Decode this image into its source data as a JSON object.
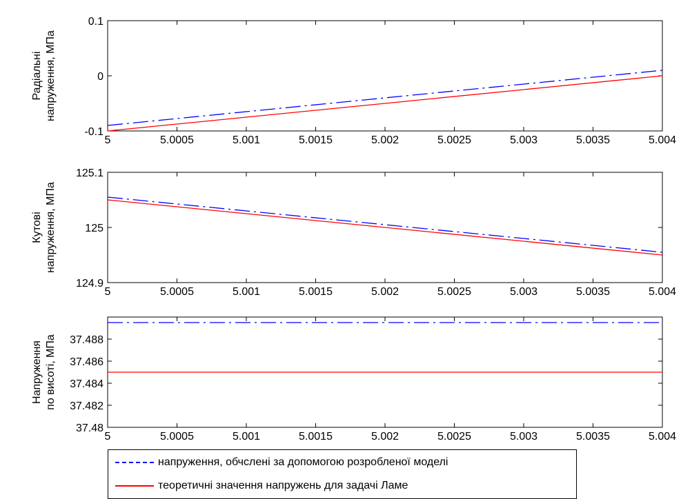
{
  "chart_data": [
    {
      "type": "line",
      "ylabel": [
        "Радіальні",
        "напруження, МПа"
      ],
      "xlim": [
        5,
        5.004
      ],
      "ylim": [
        -0.1,
        0.1
      ],
      "xticks": [
        "5",
        "5.0005",
        "5.001",
        "5.0015",
        "5.002",
        "5.0025",
        "5.003",
        "5.0035",
        "5.004"
      ],
      "yticks": [
        {
          "v": -0.1,
          "label": "-0.1"
        },
        {
          "v": 0,
          "label": "0"
        },
        {
          "v": 0.1,
          "label": "0.1"
        }
      ],
      "series": [
        {
          "style": "dashdot",
          "color": "#0000ff",
          "x": [
            5,
            5.004
          ],
          "y": [
            -0.09,
            0.01
          ]
        },
        {
          "style": "solid",
          "color": "#ff0000",
          "x": [
            5,
            5.004
          ],
          "y": [
            -0.1,
            0.0
          ]
        }
      ]
    },
    {
      "type": "line",
      "ylabel": [
        "Кутові",
        "напруження, МПа"
      ],
      "xlim": [
        5,
        5.004
      ],
      "ylim": [
        124.9,
        125.1
      ],
      "xticks": [
        "5",
        "5.0005",
        "5.001",
        "5.0015",
        "5.002",
        "5.0025",
        "5.003",
        "5.0035",
        "5.004"
      ],
      "yticks": [
        {
          "v": 124.9,
          "label": "124.9"
        },
        {
          "v": 125,
          "label": "125"
        },
        {
          "v": 125.1,
          "label": "125.1"
        }
      ],
      "series": [
        {
          "style": "dashdot",
          "color": "#0000ff",
          "x": [
            5,
            5.004
          ],
          "y": [
            125.055,
            124.955
          ]
        },
        {
          "style": "solid",
          "color": "#ff0000",
          "x": [
            5,
            5.004
          ],
          "y": [
            125.05,
            124.95
          ]
        }
      ]
    },
    {
      "type": "line",
      "ylabel": [
        "Напруження",
        "по висоті, МПа"
      ],
      "xlim": [
        5,
        5.004
      ],
      "ylim": [
        37.48,
        37.49
      ],
      "xticks": [
        "5",
        "5.0005",
        "5.001",
        "5.0015",
        "5.002",
        "5.0025",
        "5.003",
        "5.0035",
        "5.004"
      ],
      "yticks": [
        {
          "v": 37.48,
          "label": "37.48"
        },
        {
          "v": 37.482,
          "label": "37.482"
        },
        {
          "v": 37.484,
          "label": "37.484"
        },
        {
          "v": 37.486,
          "label": "37.486"
        },
        {
          "v": 37.488,
          "label": "37.488"
        }
      ],
      "series": [
        {
          "style": "dashdot",
          "color": "#0000ff",
          "x": [
            5,
            5.004
          ],
          "y": [
            37.4895,
            37.4895
          ]
        },
        {
          "style": "solid",
          "color": "#ff0000",
          "x": [
            5,
            5.004
          ],
          "y": [
            37.485,
            37.485
          ]
        }
      ]
    }
  ],
  "legend": {
    "entries": [
      {
        "label": "напруження, обчслені за допомогою розробленої моделі",
        "color": "#0000ff",
        "style": "dashdot"
      },
      {
        "label": "теоретичні значення напружень для задачі Ламе",
        "color": "#ff0000",
        "style": "solid"
      }
    ]
  }
}
